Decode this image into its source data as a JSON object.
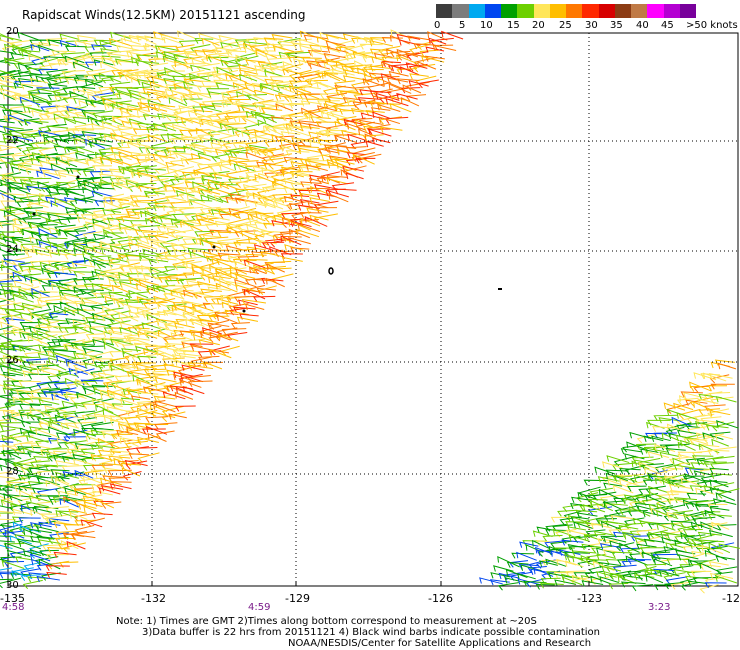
{
  "title": "Rapidscat Winds(12.5KM) 20151121 ascending",
  "legend": {
    "colors": [
      "#3c3c3c",
      "#7c7c7c",
      "#00a9f0",
      "#0046f0",
      "#00a000",
      "#6cd000",
      "#ffe65a",
      "#ffbe00",
      "#ff7800",
      "#ff2800",
      "#d70000",
      "#8c3c14",
      "#c07a46",
      "#ff00ff",
      "#b400d2",
      "#78009b"
    ],
    "labels": [
      "0",
      "5",
      "10",
      "15",
      "20",
      "25",
      "30",
      "35",
      "40",
      "45",
      ">50 knots"
    ]
  },
  "axes": {
    "lon_labels": [
      "-135",
      "-132",
      "-129",
      "-126",
      "-123",
      "-12"
    ],
    "lat_labels": [
      "20",
      "22",
      "24",
      "26",
      "28",
      "30"
    ]
  },
  "times": [
    "4:58",
    "4:59",
    "3:23"
  ],
  "notes": {
    "line1": "Note: 1) Times are GMT 2)Times along bottom correspond to measurement at ~20S",
    "line2": "3)Data buffer is 22 hrs from 20151121 4) Black wind barbs indicate possible contamination",
    "line3": "NOAA/NESDIS/Center for Satellite Applications and Research"
  }
}
